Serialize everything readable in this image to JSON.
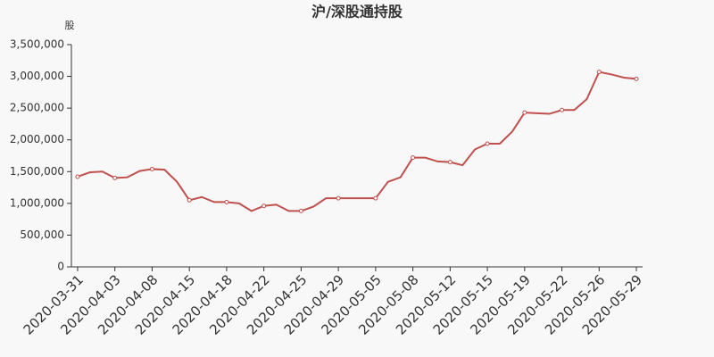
{
  "chart_data": {
    "type": "line",
    "title": "沪/深股通持股",
    "ylabel": "股",
    "categories": [
      "2020-03-31",
      null,
      null,
      "2020-04-03",
      null,
      null,
      "2020-04-08",
      null,
      null,
      "2020-04-15",
      null,
      null,
      "2020-04-18",
      null,
      null,
      "2020-04-22",
      null,
      null,
      "2020-04-25",
      null,
      null,
      "2020-04-29",
      null,
      null,
      "2020-05-05",
      null,
      null,
      "2020-05-08",
      null,
      null,
      "2020-05-12",
      null,
      null,
      "2020-05-15",
      null,
      null,
      "2020-05-19",
      null,
      null,
      "2020-05-22",
      null,
      null,
      "2020-05-26",
      null,
      null,
      "2020-05-29"
    ],
    "series": [
      {
        "name": "沪/深股通持股",
        "color": "#c0504d",
        "values": [
          1420000,
          1490000,
          1500000,
          1400000,
          1410000,
          1510000,
          1540000,
          1530000,
          1340000,
          1050000,
          1100000,
          1020000,
          1020000,
          1000000,
          880000,
          960000,
          980000,
          880000,
          880000,
          950000,
          1080000,
          1080000,
          1080000,
          1080000,
          1080000,
          1340000,
          1410000,
          1720000,
          1720000,
          1660000,
          1650000,
          1600000,
          1850000,
          1940000,
          1940000,
          2130000,
          2430000,
          2420000,
          2410000,
          2470000,
          2470000,
          2640000,
          3070000,
          3030000,
          2980000,
          2960000
        ]
      }
    ],
    "ylim": [
      0,
      3500000
    ],
    "yticks": [
      0,
      {
        "value": 500000,
        "label": "500,000"
      },
      {
        "value": 1000000,
        "label": "1,000,000"
      },
      {
        "value": 1500000,
        "label": "1,500,000"
      },
      {
        "value": 2000000,
        "label": "2,000,000"
      },
      {
        "value": 2500000,
        "label": "2,500,000"
      },
      {
        "value": 3000000,
        "label": "3,000,000"
      },
      {
        "value": 3500000,
        "label": "3,500,000"
      }
    ]
  }
}
